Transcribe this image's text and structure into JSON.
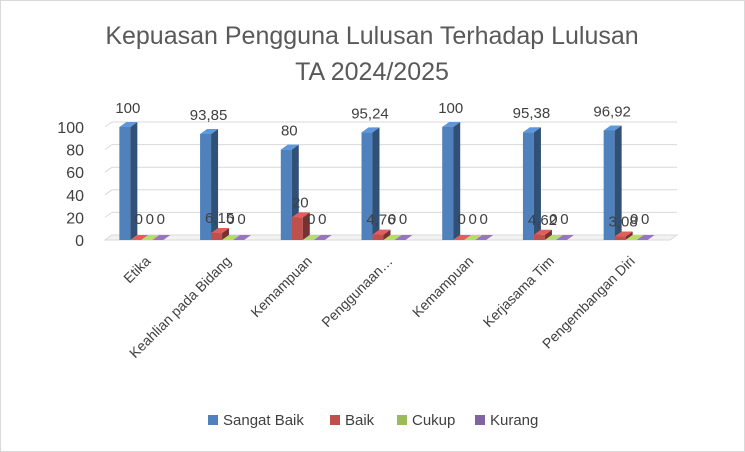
{
  "chart_data": {
    "type": "bar",
    "title": "Kepuasan Pengguna Lulusan Terhadap Lulusan",
    "subtitle": "TA 2024/2025",
    "categories": [
      "Etika",
      "Keahlian pada Bidang",
      "Kemampuan",
      "Penggunaan…",
      "Kemampuan",
      "Kerjasama Tim",
      "Pengembangan Diri"
    ],
    "series": [
      {
        "name": "Sangat Baik",
        "color": "#4f81bd",
        "values": [
          100,
          93.85,
          80,
          95.24,
          100,
          95.38,
          96.92
        ],
        "labels": [
          "100",
          "93,85",
          "80",
          "95,24",
          "100",
          "95,38",
          "96,92"
        ]
      },
      {
        "name": "Baik",
        "color": "#c0504d",
        "values": [
          0,
          6.15,
          20,
          4.76,
          0,
          4.62,
          3.08
        ],
        "labels": [
          "0",
          "6,15",
          "20",
          "4,76",
          "0",
          "4,62",
          "3,08"
        ]
      },
      {
        "name": "Cukup",
        "color": "#9bbb59",
        "values": [
          0,
          0,
          0,
          0,
          0,
          0,
          0
        ],
        "labels": [
          "0",
          "0",
          "0",
          "0",
          "0",
          "0",
          "0"
        ]
      },
      {
        "name": "Kurang",
        "color": "#8064a2",
        "values": [
          0,
          0,
          0,
          0,
          0,
          0,
          0
        ],
        "labels": [
          "0",
          "0",
          "0",
          "0",
          "0",
          "0",
          "0"
        ]
      }
    ],
    "yticks": [
      "0",
      "20",
      "40",
      "60",
      "80",
      "100"
    ],
    "ylim": [
      0,
      100
    ],
    "grid": true,
    "legend": "bottom",
    "style": "3d-column"
  }
}
